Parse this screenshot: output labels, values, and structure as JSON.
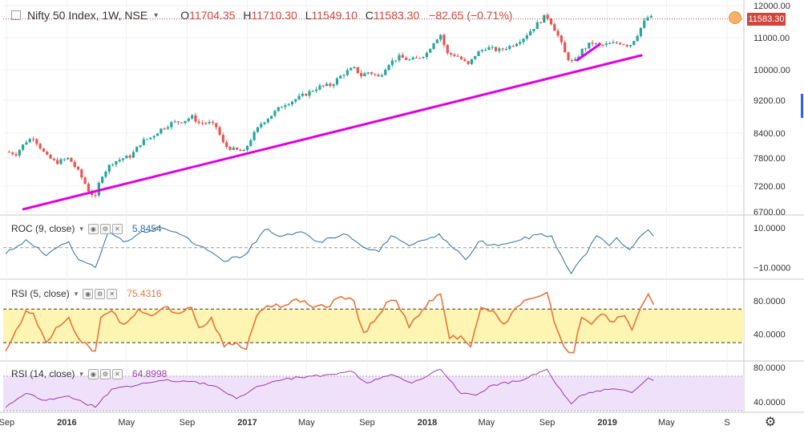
{
  "header": {
    "symbol": "Nifty 50 Index, 1W, NSE",
    "open_label": "O",
    "open": "11704.35",
    "high_label": "H",
    "high": "11710.30",
    "low_label": "L",
    "low": "11549.10",
    "close_label": "C",
    "close": "11583.30",
    "change": "−82.65 (−0.71%)"
  },
  "last_price_tag": "11583.30",
  "colors": {
    "up": "#26a69a",
    "down": "#ef5350",
    "trendline": "#e000e0",
    "roc_line": "#2c6e9e",
    "rsi5_line": "#e8743b",
    "rsi5_band": "#fff5b3",
    "rsi14_line": "#9b3aa8",
    "rsi14_band": "#f0e1fb",
    "price_line": "#d0453c"
  },
  "chart_data": [
    {
      "type": "candlestick",
      "title": "Nifty 50 Index, 1W, NSE",
      "ylim": [
        6500,
        12200
      ],
      "yticks": [
        "12000.00",
        "11000.00",
        "10000.00",
        "9200.00",
        "8400.00",
        "7800.00",
        "7200.00",
        "6700.00"
      ],
      "last": 11583.3,
      "trendlines": [
        {
          "from": [
            "2015-10-05",
            6750
          ],
          "to": [
            "2019-03-11",
            10450
          ]
        },
        {
          "from": [
            "2018-11-01",
            10300
          ],
          "to": [
            "2018-12-17",
            10800
          ]
        }
      ],
      "close_path": [
        [
          "2015-08-30",
          7950
        ],
        [
          "2015-09-20",
          7900
        ],
        [
          "2015-10-10",
          8200
        ],
        [
          "2015-10-25",
          8300
        ],
        [
          "2015-11-20",
          7850
        ],
        [
          "2015-12-10",
          7700
        ],
        [
          "2016-01-05",
          7800
        ],
        [
          "2016-01-25",
          7500
        ],
        [
          "2016-02-15",
          7100
        ],
        [
          "2016-02-28",
          6980
        ],
        [
          "2016-03-10",
          7400
        ],
        [
          "2016-04-01",
          7700
        ],
        [
          "2016-04-25",
          7800
        ],
        [
          "2016-05-10",
          7850
        ],
        [
          "2016-06-01",
          8200
        ],
        [
          "2016-06-20",
          8300
        ],
        [
          "2016-07-10",
          8500
        ],
        [
          "2016-08-01",
          8650
        ],
        [
          "2016-08-25",
          8700
        ],
        [
          "2016-09-10",
          8800
        ],
        [
          "2016-09-25",
          8650
        ],
        [
          "2016-10-15",
          8650
        ],
        [
          "2016-10-30",
          8550
        ],
        [
          "2016-11-15",
          8100
        ],
        [
          "2016-12-05",
          8000
        ],
        [
          "2016-12-25",
          7950
        ],
        [
          "2017-01-10",
          8300
        ],
        [
          "2017-01-30",
          8650
        ],
        [
          "2017-02-20",
          8850
        ],
        [
          "2017-03-15",
          9100
        ],
        [
          "2017-04-05",
          9200
        ],
        [
          "2017-05-05",
          9400
        ],
        [
          "2017-05-25",
          9550
        ],
        [
          "2017-06-20",
          9600
        ],
        [
          "2017-07-15",
          9900
        ],
        [
          "2017-08-05",
          10050
        ],
        [
          "2017-08-20",
          9850
        ],
        [
          "2017-09-05",
          9950
        ],
        [
          "2017-09-25",
          9800
        ],
        [
          "2017-10-15",
          10200
        ],
        [
          "2017-11-05",
          10400
        ],
        [
          "2017-11-25",
          10300
        ],
        [
          "2017-12-10",
          10350
        ],
        [
          "2017-12-30",
          10500
        ],
        [
          "2018-01-15",
          10900
        ],
        [
          "2018-01-28",
          11100
        ],
        [
          "2018-02-10",
          10500
        ],
        [
          "2018-03-01",
          10450
        ],
        [
          "2018-03-25",
          10150
        ],
        [
          "2018-04-10",
          10500
        ],
        [
          "2018-05-01",
          10700
        ],
        [
          "2018-05-25",
          10600
        ],
        [
          "2018-06-20",
          10750
        ],
        [
          "2018-07-15",
          11000
        ],
        [
          "2018-08-10",
          11400
        ],
        [
          "2018-08-30",
          11700
        ],
        [
          "2018-09-10",
          11450
        ],
        [
          "2018-09-25",
          11000
        ],
        [
          "2018-10-10",
          10400
        ],
        [
          "2018-10-25",
          10200
        ],
        [
          "2018-11-10",
          10600
        ],
        [
          "2018-11-30",
          10850
        ],
        [
          "2018-12-15",
          10750
        ],
        [
          "2019-01-05",
          10800
        ],
        [
          "2019-01-25",
          10850
        ],
        [
          "2019-02-15",
          10750
        ],
        [
          "2019-03-01",
          11050
        ],
        [
          "2019-03-15",
          11450
        ],
        [
          "2019-03-25",
          11650
        ],
        [
          "2019-04-05",
          11600
        ]
      ]
    },
    {
      "type": "line",
      "title": "ROC (9, close)",
      "last": "5.8454",
      "ylim": [
        -15,
        14
      ],
      "yticks": [
        "10.0000",
        "−10.0000"
      ],
      "zero_line": 0,
      "path": [
        [
          "2015-08-30",
          -3
        ],
        [
          "2015-10-10",
          4
        ],
        [
          "2015-11-20",
          -4
        ],
        [
          "2016-01-05",
          3
        ],
        [
          "2016-01-25",
          -6
        ],
        [
          "2016-02-28",
          -10
        ],
        [
          "2016-03-25",
          8
        ],
        [
          "2016-04-25",
          3
        ],
        [
          "2016-05-25",
          7
        ],
        [
          "2016-07-10",
          10
        ],
        [
          "2016-08-25",
          6
        ],
        [
          "2016-09-25",
          1
        ],
        [
          "2016-11-15",
          -7
        ],
        [
          "2016-12-25",
          -4
        ],
        [
          "2017-02-05",
          9
        ],
        [
          "2017-03-15",
          6
        ],
        [
          "2017-04-20",
          8
        ],
        [
          "2017-05-25",
          3
        ],
        [
          "2017-07-15",
          7
        ],
        [
          "2017-08-20",
          1
        ],
        [
          "2017-09-25",
          -2
        ],
        [
          "2017-10-20",
          6
        ],
        [
          "2017-11-25",
          1
        ],
        [
          "2017-12-30",
          4
        ],
        [
          "2018-01-25",
          7
        ],
        [
          "2018-03-20",
          -6
        ],
        [
          "2018-04-15",
          3
        ],
        [
          "2018-05-25",
          1
        ],
        [
          "2018-07-10",
          4
        ],
        [
          "2018-08-20",
          7
        ],
        [
          "2018-09-10",
          6
        ],
        [
          "2018-09-30",
          -4
        ],
        [
          "2018-10-20",
          -13
        ],
        [
          "2018-11-20",
          -3
        ],
        [
          "2018-12-10",
          6
        ],
        [
          "2019-01-05",
          1
        ],
        [
          "2019-01-20",
          5
        ],
        [
          "2019-02-15",
          -1
        ],
        [
          "2019-03-15",
          7
        ],
        [
          "2019-03-25",
          9
        ],
        [
          "2019-04-05",
          5.8
        ]
      ]
    },
    {
      "type": "line",
      "title": "RSI (5, close)",
      "last": "75.4316",
      "ylim": [
        10,
        98
      ],
      "yticks": [
        "80.0000",
        "40.0000"
      ],
      "band": [
        30,
        70
      ],
      "path": [
        [
          "2015-08-30",
          20
        ],
        [
          "2015-09-20",
          45
        ],
        [
          "2015-10-10",
          68
        ],
        [
          "2015-10-25",
          65
        ],
        [
          "2015-11-20",
          30
        ],
        [
          "2015-12-10",
          48
        ],
        [
          "2016-01-05",
          60
        ],
        [
          "2016-01-25",
          35
        ],
        [
          "2016-02-15",
          25
        ],
        [
          "2016-02-28",
          20
        ],
        [
          "2016-03-10",
          60
        ],
        [
          "2016-04-01",
          68
        ],
        [
          "2016-04-25",
          52
        ],
        [
          "2016-05-25",
          70
        ],
        [
          "2016-06-20",
          62
        ],
        [
          "2016-07-15",
          72
        ],
        [
          "2016-08-10",
          65
        ],
        [
          "2016-09-10",
          72
        ],
        [
          "2016-09-25",
          48
        ],
        [
          "2016-10-20",
          60
        ],
        [
          "2016-11-15",
          25
        ],
        [
          "2016-12-10",
          30
        ],
        [
          "2016-12-30",
          22
        ],
        [
          "2017-01-20",
          62
        ],
        [
          "2017-02-10",
          74
        ],
        [
          "2017-03-10",
          72
        ],
        [
          "2017-04-10",
          82
        ],
        [
          "2017-05-05",
          75
        ],
        [
          "2017-06-10",
          72
        ],
        [
          "2017-07-10",
          85
        ],
        [
          "2017-08-05",
          80
        ],
        [
          "2017-08-25",
          42
        ],
        [
          "2017-09-15",
          55
        ],
        [
          "2017-10-10",
          78
        ],
        [
          "2017-10-30",
          80
        ],
        [
          "2017-11-25",
          48
        ],
        [
          "2017-12-15",
          62
        ],
        [
          "2018-01-05",
          80
        ],
        [
          "2018-01-28",
          88
        ],
        [
          "2018-02-15",
          35
        ],
        [
          "2018-03-10",
          38
        ],
        [
          "2018-03-30",
          25
        ],
        [
          "2018-04-20",
          72
        ],
        [
          "2018-05-15",
          68
        ],
        [
          "2018-06-05",
          52
        ],
        [
          "2018-06-30",
          72
        ],
        [
          "2018-07-25",
          82
        ],
        [
          "2018-08-20",
          86
        ],
        [
          "2018-09-01",
          90
        ],
        [
          "2018-09-15",
          55
        ],
        [
          "2018-10-05",
          25
        ],
        [
          "2018-10-25",
          18
        ],
        [
          "2018-11-10",
          60
        ],
        [
          "2018-11-30",
          52
        ],
        [
          "2018-12-20",
          64
        ],
        [
          "2019-01-15",
          55
        ],
        [
          "2019-02-05",
          62
        ],
        [
          "2019-02-20",
          45
        ],
        [
          "2019-03-10",
          72
        ],
        [
          "2019-03-25",
          88
        ],
        [
          "2019-04-05",
          75.4
        ]
      ]
    },
    {
      "type": "line",
      "title": "RSI (14, close)",
      "last": "64.8998",
      "ylim": [
        30,
        82
      ],
      "yticks": [
        "80.0000",
        "40.0000"
      ],
      "band": [
        30,
        70
      ],
      "path": [
        [
          "2015-08-30",
          34
        ],
        [
          "2015-10-10",
          50
        ],
        [
          "2015-11-20",
          42
        ],
        [
          "2016-01-05",
          47
        ],
        [
          "2016-02-28",
          34
        ],
        [
          "2016-04-01",
          55
        ],
        [
          "2016-05-25",
          60
        ],
        [
          "2016-07-15",
          65
        ],
        [
          "2016-09-10",
          64
        ],
        [
          "2016-10-30",
          58
        ],
        [
          "2016-12-10",
          44
        ],
        [
          "2017-01-20",
          58
        ],
        [
          "2017-03-15",
          66
        ],
        [
          "2017-05-05",
          70
        ],
        [
          "2017-06-30",
          72
        ],
        [
          "2017-07-30",
          76
        ],
        [
          "2017-09-01",
          62
        ],
        [
          "2017-10-20",
          72
        ],
        [
          "2017-12-01",
          62
        ],
        [
          "2018-01-28",
          78
        ],
        [
          "2018-03-10",
          50
        ],
        [
          "2018-04-10",
          48
        ],
        [
          "2018-05-15",
          60
        ],
        [
          "2018-06-30",
          64
        ],
        [
          "2018-08-10",
          72
        ],
        [
          "2018-09-01",
          78
        ],
        [
          "2018-09-20",
          60
        ],
        [
          "2018-10-20",
          38
        ],
        [
          "2018-11-10",
          48
        ],
        [
          "2018-12-10",
          53
        ],
        [
          "2019-01-20",
          55
        ],
        [
          "2019-02-20",
          51
        ],
        [
          "2019-03-25",
          68
        ],
        [
          "2019-04-05",
          64.9
        ]
      ]
    }
  ],
  "x_axis": {
    "ticks": [
      {
        "label": "Sep",
        "date": "2015-09-01",
        "bold": false
      },
      {
        "label": "2016",
        "date": "2016-01-01",
        "bold": true
      },
      {
        "label": "May",
        "date": "2016-05-01",
        "bold": false
      },
      {
        "label": "Sep",
        "date": "2016-09-01",
        "bold": false
      },
      {
        "label": "2017",
        "date": "2017-01-01",
        "bold": true
      },
      {
        "label": "May",
        "date": "2017-05-01",
        "bold": false
      },
      {
        "label": "Sep",
        "date": "2017-09-01",
        "bold": false
      },
      {
        "label": "2018",
        "date": "2018-01-01",
        "bold": true
      },
      {
        "label": "May",
        "date": "2018-05-01",
        "bold": false
      },
      {
        "label": "Sep",
        "date": "2018-09-01",
        "bold": false
      },
      {
        "label": "2019",
        "date": "2019-01-01",
        "bold": true
      },
      {
        "label": "May",
        "date": "2019-05-01",
        "bold": false
      },
      {
        "label": "S",
        "date": "2019-09-01",
        "bold": false
      }
    ]
  }
}
